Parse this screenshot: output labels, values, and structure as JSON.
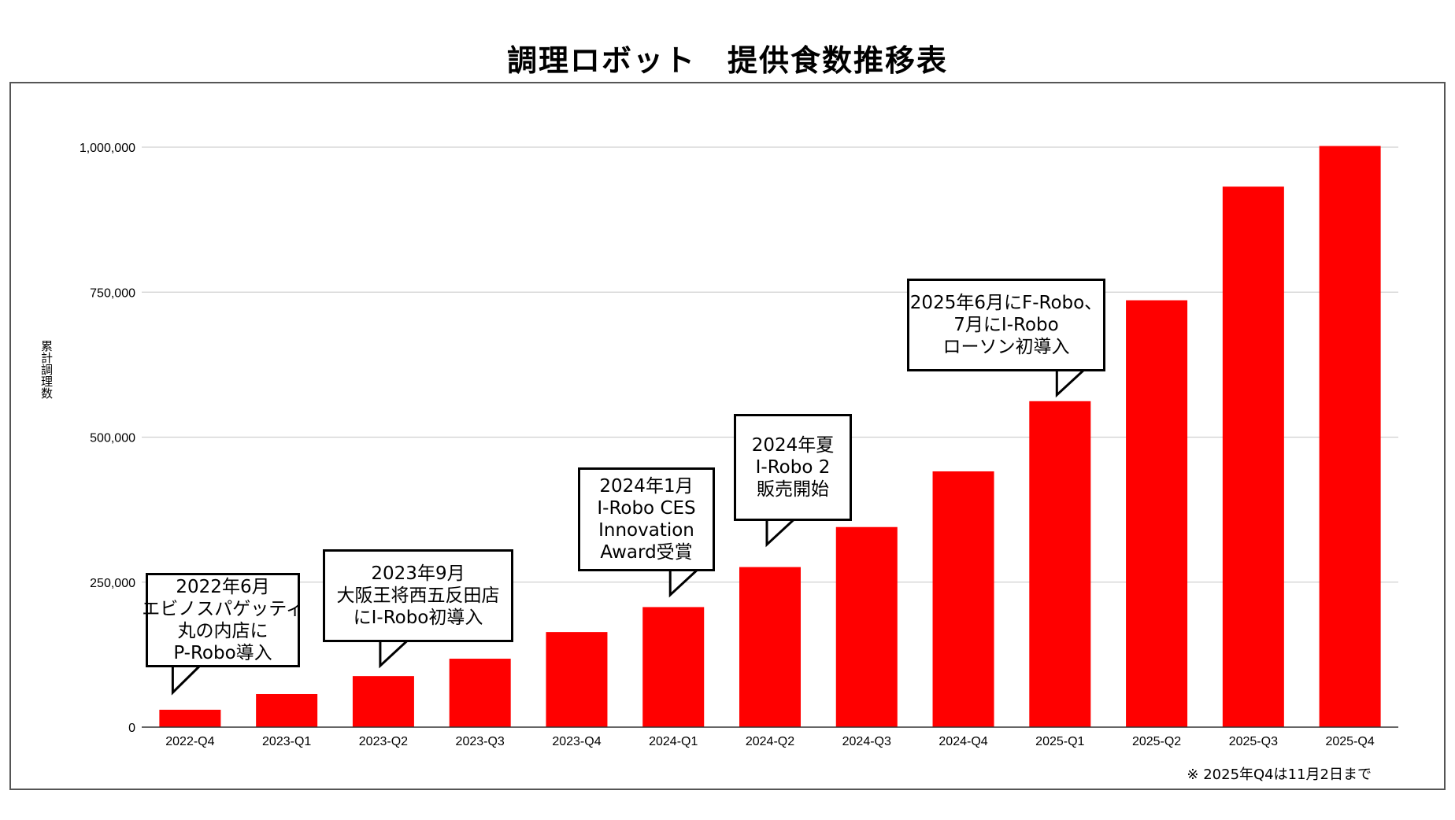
{
  "chart_data": {
    "type": "bar",
    "title": "調理ロボット　提供食数推移表",
    "ylabel": "累計調理数",
    "xlabel": "",
    "categories": [
      "2022-Q4",
      "2023-Q1",
      "2023-Q2",
      "2023-Q3",
      "2023-Q4",
      "2024-Q1",
      "2024-Q2",
      "2024-Q3",
      "2024-Q4",
      "2025-Q1",
      "2025-Q2",
      "2025-Q3",
      "2025-Q4"
    ],
    "values": [
      30000,
      57000,
      88000,
      118000,
      164000,
      207000,
      276000,
      345000,
      441000,
      562000,
      736000,
      932000,
      1002000
    ],
    "ylim": [
      0,
      1000000
    ],
    "yticks": [
      0,
      250000,
      500000,
      750000,
      1000000
    ],
    "ytick_labels": [
      "0",
      "250,000",
      "500,000",
      "750,000",
      "1,000,000"
    ],
    "bar_color": "#ff0000",
    "grid": true,
    "annotations": [
      {
        "category": "2022-Q4",
        "lines": [
          "2022年6月",
          "エビノスパゲッティ",
          "丸の内店に",
          "P-Robo導入"
        ]
      },
      {
        "category": "2023-Q2",
        "lines": [
          "2023年9月",
          "大阪王将西五反田店",
          "にI-Robo初導入"
        ]
      },
      {
        "category": "2024-Q1",
        "lines": [
          "2024年1月",
          "I-Robo  CES",
          "Innovation",
          "Award受賞"
        ]
      },
      {
        "category": "2024-Q2",
        "lines": [
          "2024年夏",
          "I-Robo 2",
          "販売開始"
        ]
      },
      {
        "category": "2025-Q1",
        "lines": [
          "2025年6月にF-Robo、",
          "7月にI-Robo",
          "ローソン初導入"
        ]
      }
    ],
    "footnote": "※ 2025年Q4は11月2日まで"
  }
}
